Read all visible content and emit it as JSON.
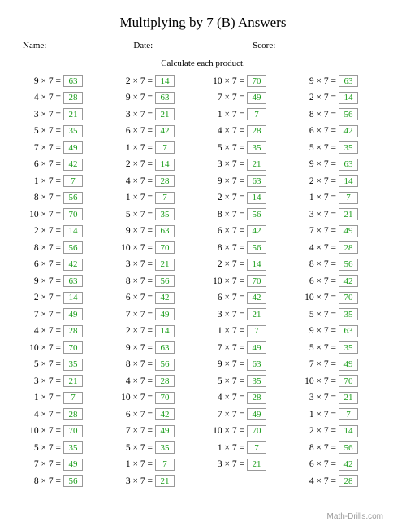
{
  "title": "Multiplying by 7 (B) Answers",
  "labels": {
    "name": "Name:",
    "date": "Date:",
    "score": "Score:"
  },
  "instruction": "Calculate each product.",
  "footer": "Math-Drills.com",
  "multiplier": 7,
  "line_widths": {
    "name": 80,
    "date": 96,
    "score": 46
  },
  "columns": [
    [
      9,
      4,
      3,
      5,
      7,
      6,
      1,
      8,
      10,
      2,
      8,
      6,
      9,
      2,
      7,
      4,
      10,
      5,
      3,
      1,
      4,
      10,
      5,
      7,
      8
    ],
    [
      2,
      9,
      3,
      6,
      1,
      2,
      4,
      1,
      5,
      9,
      10,
      3,
      8,
      6,
      7,
      2,
      9,
      8,
      4,
      10,
      6,
      7,
      5,
      1,
      3
    ],
    [
      10,
      7,
      1,
      4,
      5,
      3,
      9,
      2,
      8,
      6,
      8,
      2,
      10,
      6,
      3,
      1,
      7,
      9,
      5,
      4,
      7,
      10,
      1,
      3,
      null
    ],
    [
      9,
      2,
      8,
      6,
      5,
      9,
      2,
      1,
      3,
      7,
      4,
      8,
      6,
      10,
      5,
      9,
      5,
      7,
      10,
      3,
      1,
      2,
      8,
      6,
      4
    ]
  ]
}
